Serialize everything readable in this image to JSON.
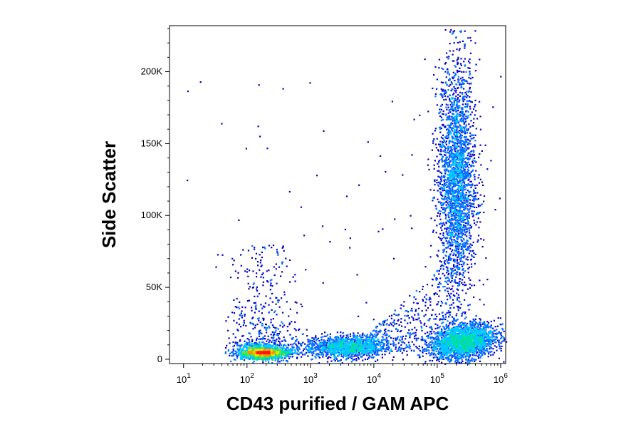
{
  "chart_data": {
    "type": "scatter",
    "subtype": "flow-cytometry-density-dot-plot",
    "title": "",
    "xlabel": "CD43 purified / GAM APC",
    "ylabel": "Side Scatter",
    "x_scale": "log",
    "xlim": [
      6,
      1200000
    ],
    "ylim": [
      -3000,
      232000
    ],
    "grid": false,
    "legend": "none",
    "x_ticks": [
      {
        "value": 10,
        "label_base": "10",
        "label_exp": "1"
      },
      {
        "value": 100,
        "label_base": "10",
        "label_exp": "2"
      },
      {
        "value": 1000,
        "label_base": "10",
        "label_exp": "3"
      },
      {
        "value": 10000,
        "label_base": "10",
        "label_exp": "4"
      },
      {
        "value": 100000,
        "label_base": "10",
        "label_exp": "5"
      },
      {
        "value": 1000000,
        "label_base": "10",
        "label_exp": "6"
      }
    ],
    "y_ticks": [
      {
        "value": 0,
        "label": "0"
      },
      {
        "value": 50000,
        "label": "50K"
      },
      {
        "value": 100000,
        "label": "100K"
      },
      {
        "value": 150000,
        "label": "150K"
      },
      {
        "value": 200000,
        "label": "200K"
      }
    ],
    "density_colors": [
      "#0000c8",
      "#0070ff",
      "#00c8ff",
      "#00e0a0",
      "#60e040",
      "#e8e800",
      "#ff9000",
      "#ff1800"
    ],
    "populations": [
      {
        "name": "negative",
        "x_center": 180,
        "x_log_sd": 0.2,
        "y_center": 4000,
        "y_sd": 3500,
        "tail_y_max": 80000,
        "density": "high"
      },
      {
        "name": "intermediate",
        "x_center": 3500,
        "x_log_sd": 0.32,
        "y_center": 9000,
        "y_sd": 4000,
        "density": "medium"
      },
      {
        "name": "positive_low_ssc",
        "x_center": 250000,
        "x_log_sd": 0.25,
        "y_center": 13000,
        "y_sd": 6000,
        "density": "high"
      },
      {
        "name": "positive_high_ssc",
        "x_center": 200000,
        "x_log_sd": 0.15,
        "y_center": 125000,
        "y_sd": 40000,
        "y_max": 230000,
        "density": "medium"
      }
    ]
  }
}
